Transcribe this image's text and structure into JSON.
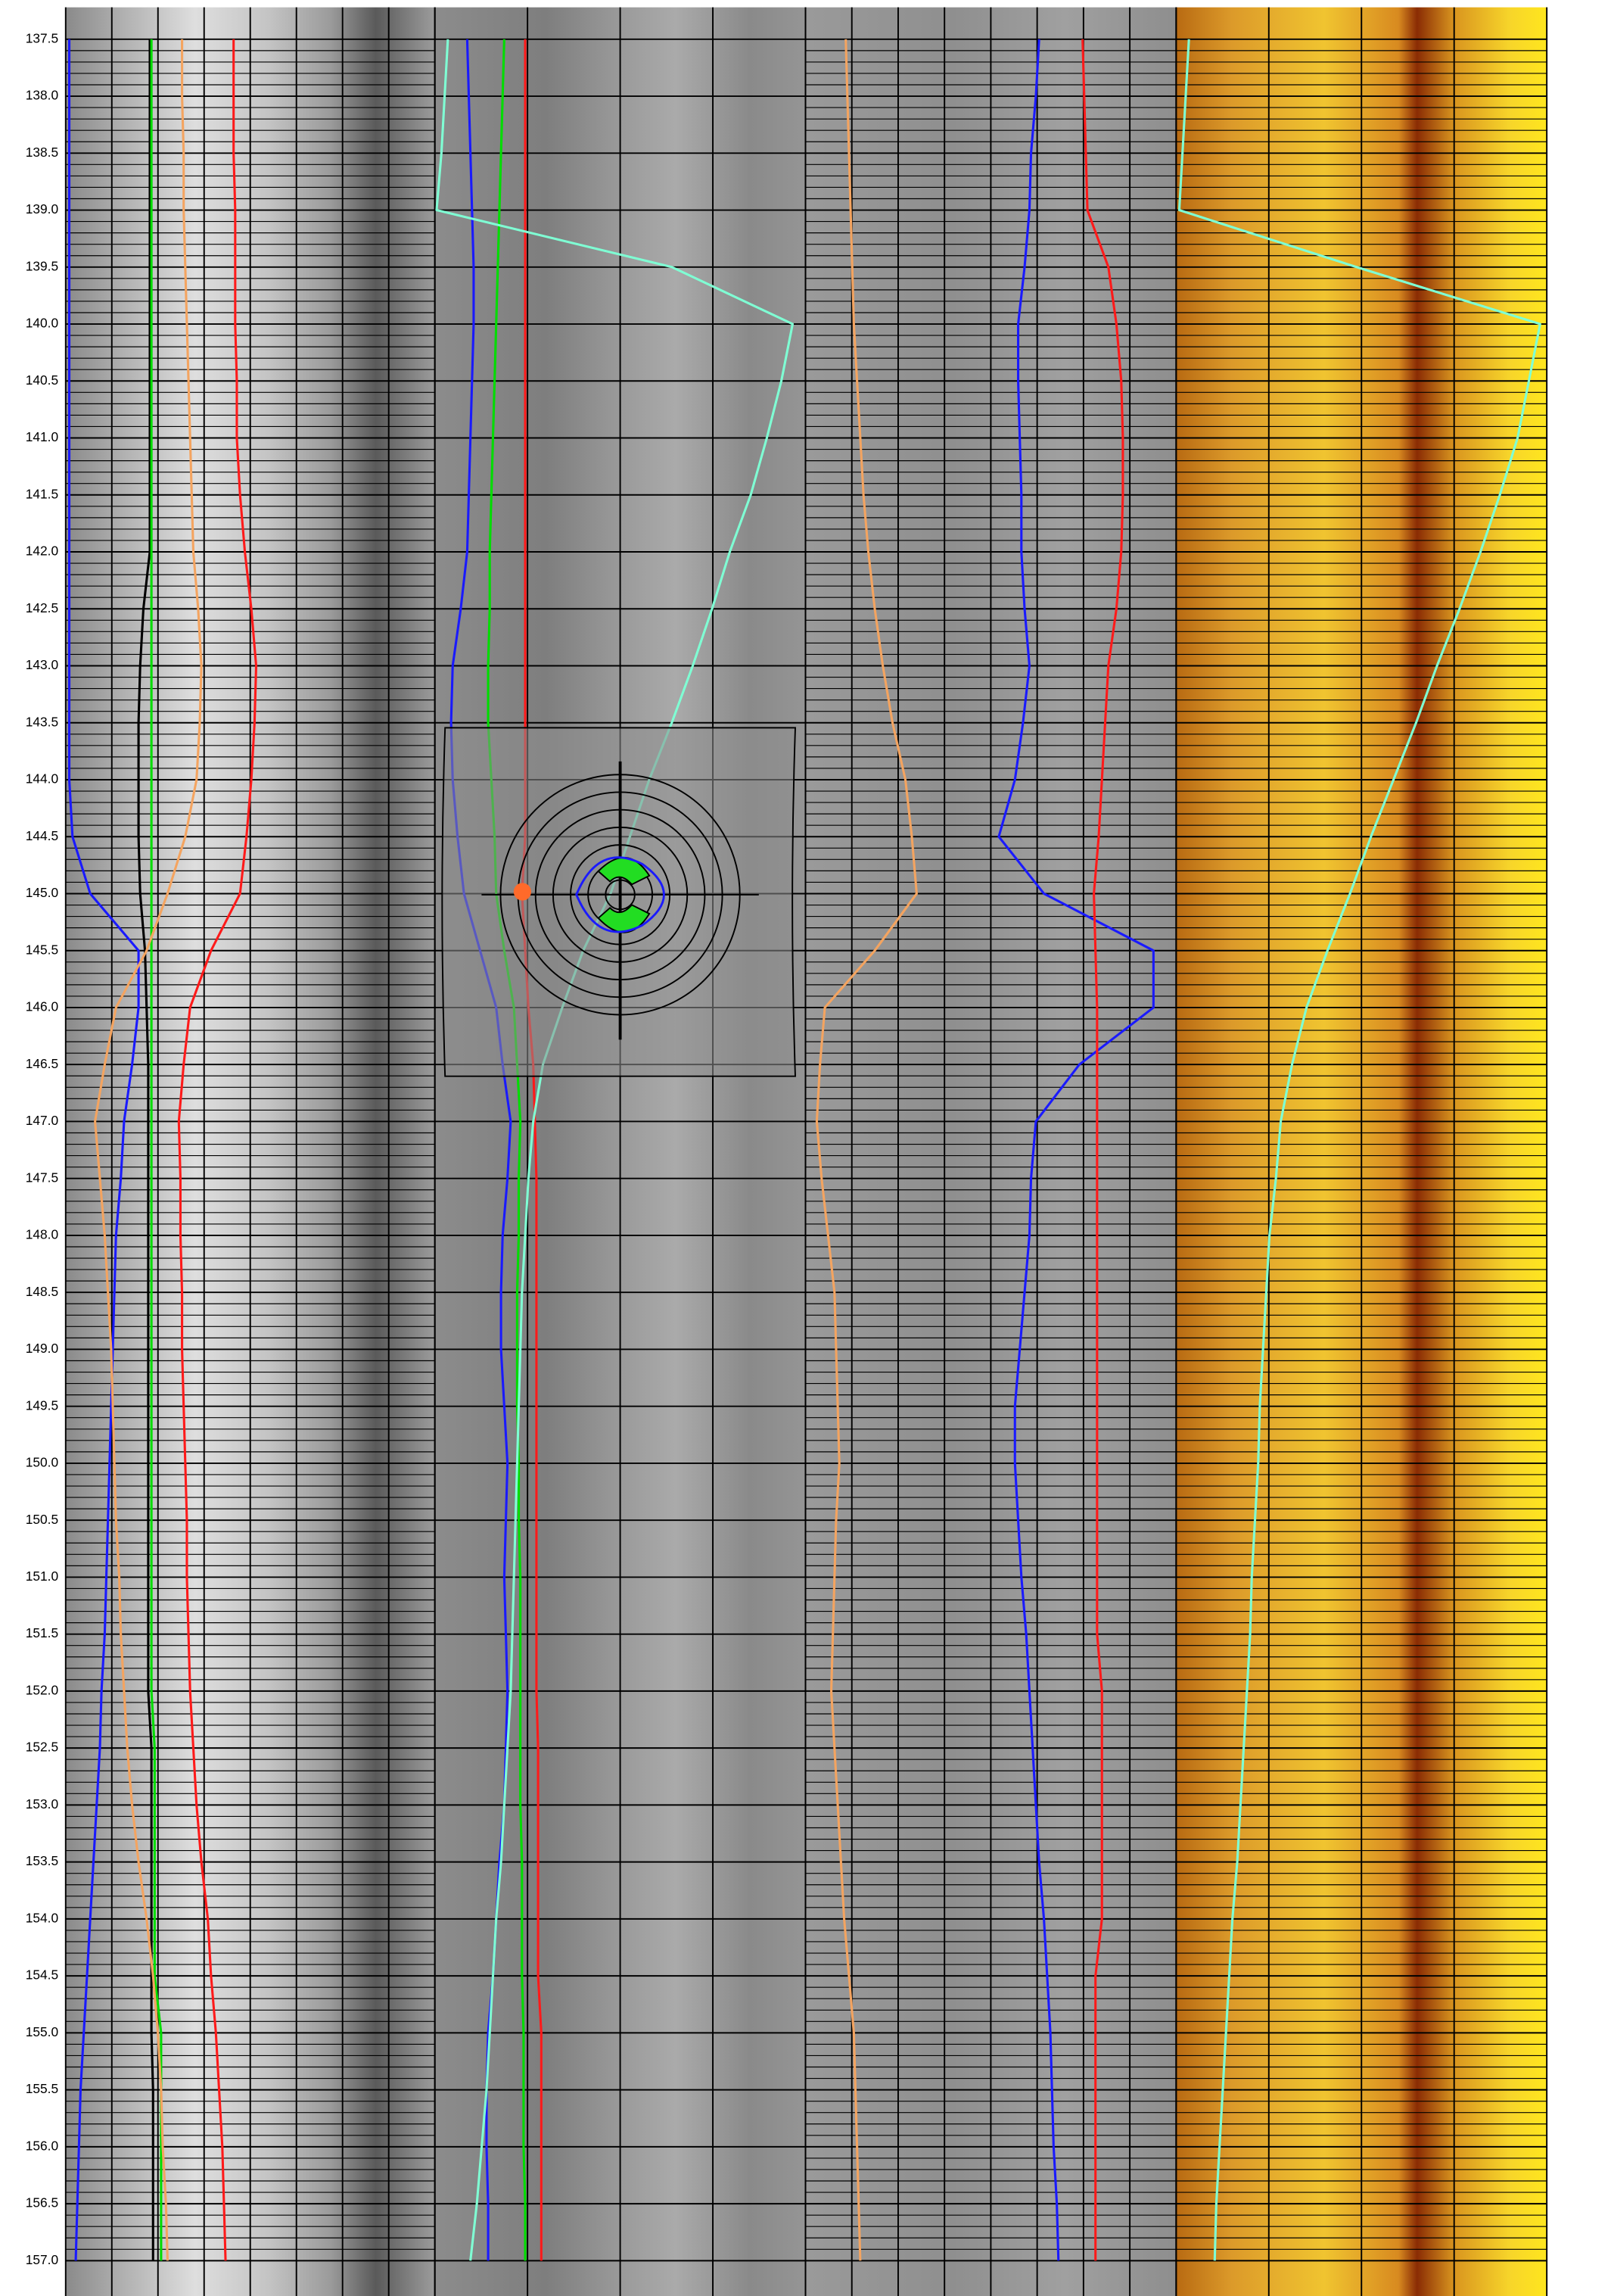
{
  "chart_data": {
    "type": "log",
    "depths": [
      137.5,
      138,
      138.5,
      139,
      139.5,
      140,
      140.5,
      141,
      141.5,
      142,
      142.5,
      143,
      143.5,
      144,
      144.5,
      145,
      145.5,
      146,
      146.5,
      147,
      147.5,
      148,
      148.5,
      149,
      149.5,
      150,
      150.5,
      151,
      151.5,
      152,
      152.5,
      153,
      153.5,
      154,
      154.5,
      155,
      155.5,
      156,
      156.5,
      157
    ],
    "ylim": [
      137.22,
      157.31
    ],
    "yticks": [
      137.5,
      {
        "value": 138,
        "label": "138.0"
      },
      138.5,
      {
        "value": 139,
        "label": "139.0"
      },
      139.5,
      {
        "value": 140,
        "label": "140.0"
      },
      140.5,
      {
        "value": 141,
        "label": "141.0"
      },
      141.5,
      {
        "value": 142,
        "label": "142.0"
      },
      142.5,
      {
        "value": 143,
        "label": "143.0"
      },
      143.5,
      {
        "value": 144,
        "label": "144.0"
      },
      144.5,
      {
        "value": 145,
        "label": "145.0"
      },
      145.5,
      {
        "value": 146,
        "label": "146.0"
      },
      146.5,
      {
        "value": 147,
        "label": "147.0"
      },
      147.5,
      {
        "value": 148,
        "label": "148.0"
      },
      148.5,
      {
        "value": 149,
        "label": "149.0"
      },
      149.5,
      {
        "value": 150,
        "label": "150.0"
      },
      150.5,
      {
        "value": 151,
        "label": "151.0"
      },
      151.5,
      {
        "value": 152,
        "label": "152.0"
      },
      152.5,
      {
        "value": 153,
        "label": "153.0"
      },
      153.5,
      {
        "value": 154,
        "label": "154.0"
      },
      154.5,
      {
        "value": 155,
        "label": "155.0"
      },
      155.5,
      {
        "value": 156,
        "label": "156.0"
      },
      156.5,
      {
        "value": 157,
        "label": "157.0"
      }
    ],
    "xlim": [
      0,
      100
    ],
    "grid": true,
    "series": [
      {
        "color": "#1a1aff",
        "values": [
          4.3,
          4.3,
          4.3,
          4.3,
          4.3,
          4.3,
          4.3,
          4.3,
          4.3,
          4.3,
          4.3,
          4.3,
          4.3,
          4.3,
          4.5,
          5.6,
          8.6,
          8.6,
          8.2,
          7.7,
          7.5,
          7.2,
          7.1,
          7.0,
          6.9,
          6.8,
          6.7,
          6.6,
          6.5,
          6.3,
          6.2,
          6.0,
          5.8,
          5.6,
          5.4,
          5.2,
          5.0,
          4.9,
          4.8,
          4.7
        ]
      },
      {
        "color": "#000000",
        "values": [
          9.3,
          9.3,
          9.3,
          9.3,
          9.3,
          9.3,
          9.3,
          9.3,
          9.3,
          9.3,
          8.9,
          8.7,
          8.6,
          8.6,
          8.6,
          8.7,
          9.0,
          9.1,
          9.2,
          9.2,
          9.2,
          9.2,
          9.2,
          9.2,
          9.2,
          9.2,
          9.2,
          9.2,
          9.2,
          9.2,
          9.4,
          9.4,
          9.4,
          9.4,
          9.4,
          9.4,
          9.5,
          9.5,
          9.5,
          9.5
        ]
      },
      {
        "color": "#00dd00",
        "values": [
          9.4,
          9.4,
          9.4,
          9.4,
          9.4,
          9.4,
          9.4,
          9.4,
          9.4,
          9.4,
          9.4,
          9.4,
          9.4,
          9.4,
          9.4,
          9.4,
          9.4,
          9.4,
          9.4,
          9.4,
          9.4,
          9.4,
          9.4,
          9.4,
          9.4,
          9.4,
          9.4,
          9.4,
          9.4,
          9.4,
          9.6,
          9.6,
          9.6,
          9.6,
          9.6,
          10.0,
          10.0,
          10.0,
          10.0,
          10.0
        ]
      },
      {
        "color": "#f4a460",
        "values": [
          11.3,
          11.3,
          11.4,
          11.4,
          11.5,
          11.6,
          11.7,
          11.8,
          11.9,
          12.0,
          12.3,
          12.5,
          12.4,
          12.2,
          11.5,
          10.4,
          9.1,
          7.2,
          6.5,
          5.9,
          6.2,
          6.5,
          6.7,
          6.9,
          7.0,
          7.1,
          7.2,
          7.4,
          7.5,
          7.7,
          7.9,
          8.2,
          8.6,
          9.1,
          9.5,
          9.8,
          10.0,
          10.1,
          10.3,
          10.4
        ]
      },
      {
        "color": "#ff1a1a",
        "values": [
          14.5,
          14.5,
          14.5,
          14.6,
          14.6,
          14.6,
          14.7,
          14.7,
          14.9,
          15.2,
          15.6,
          15.9,
          15.8,
          15.6,
          15.3,
          14.9,
          13.1,
          11.8,
          11.4,
          11.1,
          11.2,
          11.2,
          11.3,
          11.3,
          11.4,
          11.5,
          11.6,
          11.6,
          11.7,
          11.8,
          12.0,
          12.2,
          12.5,
          12.9,
          13.1,
          13.4,
          13.6,
          13.8,
          13.9,
          14.0
        ]
      },
      {
        "color": "#1a1aff",
        "values": [
          29.0,
          29.1,
          29.2,
          29.3,
          29.4,
          29.4,
          29.3,
          29.2,
          29.1,
          29.0,
          28.6,
          28.1,
          28.0,
          28.1,
          28.4,
          28.8,
          29.8,
          30.8,
          31.2,
          31.7,
          31.5,
          31.2,
          31.1,
          31.1,
          31.3,
          31.5,
          31.4,
          31.3,
          31.4,
          31.5,
          31.4,
          31.3,
          31.0,
          30.8,
          30.6,
          30.3,
          30.2,
          30.2,
          30.3,
          30.3
        ]
      },
      {
        "color": "#00dd00",
        "values": [
          31.3,
          31.2,
          31.1,
          31.0,
          30.9,
          30.8,
          30.7,
          30.6,
          30.5,
          30.4,
          30.4,
          30.3,
          30.3,
          30.5,
          30.7,
          30.8,
          31.3,
          31.9,
          32.1,
          32.3,
          32.2,
          32.2,
          32.1,
          32.1,
          32.1,
          32.2,
          32.2,
          32.3,
          32.3,
          32.3,
          32.3,
          32.3,
          32.4,
          32.4,
          32.4,
          32.5,
          32.5,
          32.5,
          32.6,
          32.6
        ]
      },
      {
        "color": "#ff1a1a",
        "values": [
          32.6,
          32.6,
          32.6,
          32.6,
          32.6,
          32.6,
          32.6,
          32.6,
          32.6,
          32.6,
          32.6,
          32.6,
          32.6,
          32.6,
          32.6,
          32.4,
          32.6,
          32.8,
          33.1,
          33.2,
          33.3,
          33.3,
          33.3,
          33.3,
          33.3,
          33.3,
          33.3,
          33.3,
          33.3,
          33.3,
          33.4,
          33.4,
          33.4,
          33.4,
          33.4,
          33.6,
          33.6,
          33.6,
          33.6,
          33.6
        ]
      },
      {
        "color": "#7fffd4",
        "values": [
          27.8,
          27.6,
          27.4,
          27.1,
          41.7,
          49.2,
          48.5,
          47.6,
          46.6,
          45.3,
          44.2,
          43.0,
          41.7,
          40.3,
          39.1,
          37.9,
          36.2,
          34.9,
          33.7,
          33.1,
          32.8,
          32.6,
          32.4,
          32.3,
          32.2,
          32.1,
          32.0,
          31.9,
          31.8,
          31.7,
          31.5,
          31.3,
          31.1,
          30.8,
          30.6,
          30.4,
          30.2,
          29.9,
          29.6,
          29.2
        ]
      },
      {
        "color": "#f4a460",
        "values": [
          52.5,
          52.6,
          52.7,
          52.8,
          52.9,
          53.0,
          53.2,
          53.4,
          53.6,
          53.9,
          54.3,
          54.8,
          55.4,
          56.2,
          56.6,
          56.9,
          54.3,
          51.2,
          50.9,
          50.7,
          51.0,
          51.4,
          51.8,
          51.9,
          52.0,
          52.1,
          51.9,
          51.8,
          51.7,
          51.6,
          51.8,
          52.0,
          52.2,
          52.4,
          52.7,
          53.0,
          53.1,
          53.2,
          53.3,
          53.4
        ]
      },
      {
        "color": "#1a1aff",
        "values": [
          64.5,
          64.3,
          64.0,
          63.9,
          63.6,
          63.2,
          63.2,
          63.3,
          63.4,
          63.4,
          63.6,
          63.9,
          63.5,
          63.0,
          62.0,
          64.8,
          71.6,
          71.6,
          67.0,
          64.3,
          64.0,
          63.9,
          63.6,
          63.3,
          63.0,
          63.0,
          63.2,
          63.4,
          63.7,
          63.9,
          64.1,
          64.3,
          64.5,
          64.8,
          65.0,
          65.2,
          65.3,
          65.4,
          65.6,
          65.7
        ]
      },
      {
        "color": "#ff1a1a",
        "values": [
          67.2,
          67.3,
          67.4,
          67.5,
          68.8,
          69.3,
          69.6,
          69.7,
          69.7,
          69.6,
          69.3,
          68.8,
          68.6,
          68.4,
          68.2,
          67.9,
          68.0,
          68.1,
          68.1,
          68.1,
          68.1,
          68.1,
          68.1,
          68.1,
          68.1,
          68.1,
          68.1,
          68.1,
          68.1,
          68.4,
          68.4,
          68.4,
          68.4,
          68.4,
          68.0,
          68.0,
          68.0,
          68.0,
          68.0,
          68.0
        ]
      },
      {
        "color": "#7fffd4",
        "values": [
          73.8,
          73.6,
          73.4,
          73.2,
          84.2,
          95.6,
          94.9,
          94.2,
          93.1,
          91.9,
          90.6,
          89.2,
          87.9,
          86.5,
          85.1,
          83.8,
          82.4,
          81.1,
          80.2,
          79.5,
          79.2,
          78.8,
          78.6,
          78.4,
          78.2,
          78.1,
          77.9,
          77.7,
          77.6,
          77.4,
          77.2,
          77.0,
          76.8,
          76.5,
          76.3,
          76.1,
          75.9,
          75.7,
          75.5,
          75.4
        ]
      }
    ]
  }
}
